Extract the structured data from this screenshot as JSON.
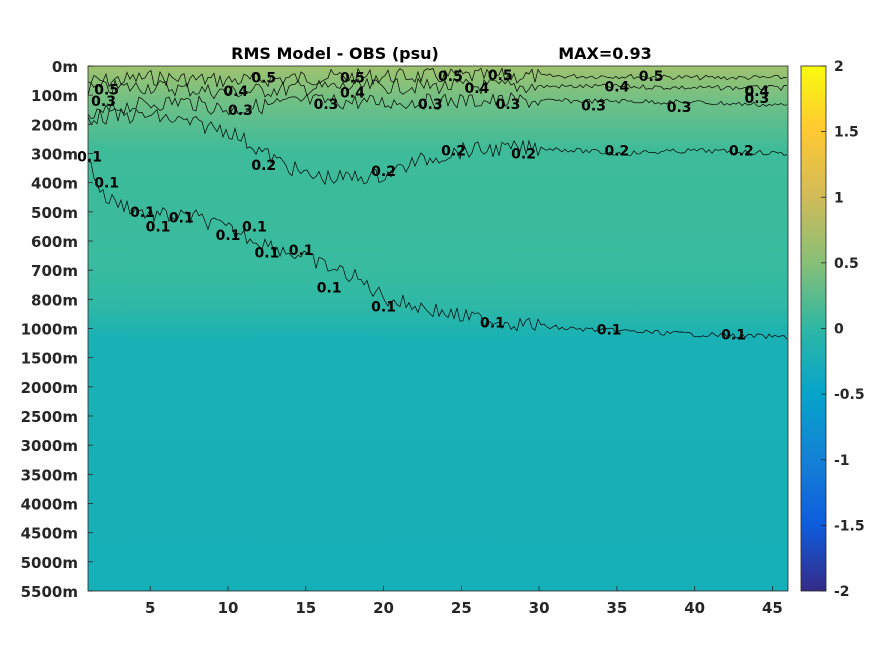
{
  "chart_data": {
    "type": "heatmap",
    "title": "RMS Model - OBS (psu)",
    "annotation": "MAX=0.93",
    "x": {
      "ticks": [
        5,
        10,
        15,
        20,
        25,
        30,
        35,
        40,
        45
      ],
      "range": [
        1,
        46
      ]
    },
    "y": {
      "ticks": [
        "0m",
        "100m",
        "200m",
        "300m",
        "400m",
        "500m",
        "600m",
        "700m",
        "800m",
        "1000m",
        "1500m",
        "2000m",
        "2500m",
        "3000m",
        "3500m",
        "4000m",
        "4500m",
        "5000m",
        "5500m"
      ],
      "direction": "downward"
    },
    "colorbar": {
      "range": [
        -2,
        2
      ],
      "ticks": [
        "2",
        "1.5",
        "1",
        "0.5",
        "0",
        "-0.5",
        "-1",
        "-1.5",
        "-2"
      ],
      "colormap": "parula",
      "stops": [
        "#352a87",
        "#0f5cdd",
        "#1481d6",
        "#06a4ca",
        "#2eb7a4",
        "#87bf77",
        "#d1bb59",
        "#fec832",
        "#f9fb0e"
      ]
    },
    "contour_levels": [
      0.1,
      0.2,
      0.3,
      0.4,
      0.5
    ],
    "contours": [
      {
        "level": 0.5,
        "label": "0.5",
        "profile": [
          [
            1,
            55
          ],
          [
            5,
            40
          ],
          [
            10,
            50
          ],
          [
            15,
            40
          ],
          [
            20,
            35
          ],
          [
            25,
            35
          ],
          [
            30,
            35
          ],
          [
            35,
            35
          ],
          [
            40,
            40
          ],
          [
            46,
            40
          ]
        ]
      },
      {
        "level": 0.4,
        "label": "0.4",
        "profile": [
          [
            1,
            80
          ],
          [
            5,
            70
          ],
          [
            10,
            90
          ],
          [
            15,
            75
          ],
          [
            20,
            70
          ],
          [
            25,
            70
          ],
          [
            30,
            70
          ],
          [
            35,
            70
          ],
          [
            40,
            75
          ],
          [
            46,
            75
          ]
        ]
      },
      {
        "level": 0.3,
        "label": "0.3",
        "profile": [
          [
            1,
            180
          ],
          [
            3,
            140
          ],
          [
            7,
            120
          ],
          [
            10,
            150
          ],
          [
            15,
            120
          ],
          [
            20,
            125
          ],
          [
            25,
            120
          ],
          [
            30,
            120
          ],
          [
            35,
            120
          ],
          [
            40,
            125
          ],
          [
            46,
            135
          ]
        ]
      },
      {
        "level": 0.2,
        "label": "0.2",
        "profile": [
          [
            1,
            175
          ],
          [
            5,
            170
          ],
          [
            10,
            220
          ],
          [
            13,
            320
          ],
          [
            15,
            375
          ],
          [
            17,
            385
          ],
          [
            20,
            375
          ],
          [
            22,
            330
          ],
          [
            25,
            290
          ],
          [
            30,
            280
          ],
          [
            35,
            300
          ],
          [
            40,
            290
          ],
          [
            46,
            300
          ]
        ]
      },
      {
        "level": 0.1,
        "label": "0.1",
        "profile": [
          [
            1,
            320
          ],
          [
            2,
            450
          ],
          [
            5,
            510
          ],
          [
            8,
            520
          ],
          [
            10,
            560
          ],
          [
            12,
            600
          ],
          [
            15,
            660
          ],
          [
            18,
            720
          ],
          [
            20,
            790
          ],
          [
            25,
            920
          ],
          [
            30,
            980
          ],
          [
            35,
            1040
          ],
          [
            40,
            1100
          ],
          [
            46,
            1150
          ]
        ]
      }
    ],
    "contour_labels": [
      {
        "text": "0.5",
        "x": 2.2,
        "y": 80
      },
      {
        "text": "0.4",
        "x": 10.5,
        "y": 85
      },
      {
        "text": "0.5",
        "x": 12.3,
        "y": 40
      },
      {
        "text": "0.5",
        "x": 18,
        "y": 40
      },
      {
        "text": "0.4",
        "x": 18,
        "y": 90
      },
      {
        "text": "0.3",
        "x": 16.3,
        "y": 130
      },
      {
        "text": "0.3",
        "x": 10.8,
        "y": 150
      },
      {
        "text": "0.3",
        "x": 23,
        "y": 130
      },
      {
        "text": "0.5",
        "x": 24.3,
        "y": 35
      },
      {
        "text": "0.4",
        "x": 26,
        "y": 75
      },
      {
        "text": "0.5",
        "x": 27.5,
        "y": 30
      },
      {
        "text": "0.3",
        "x": 28,
        "y": 130
      },
      {
        "text": "0.3",
        "x": 33.5,
        "y": 135
      },
      {
        "text": "0.4",
        "x": 35,
        "y": 70
      },
      {
        "text": "0.5",
        "x": 37.2,
        "y": 35
      },
      {
        "text": "0.3",
        "x": 39,
        "y": 140
      },
      {
        "text": "0.4",
        "x": 44,
        "y": 85
      },
      {
        "text": "0.3",
        "x": 44,
        "y": 110
      },
      {
        "text": "0.3",
        "x": 2,
        "y": 120
      },
      {
        "text": "0.2",
        "x": 12.3,
        "y": 340
      },
      {
        "text": "0.2",
        "x": 20,
        "y": 360
      },
      {
        "text": "0.2",
        "x": 24.5,
        "y": 290
      },
      {
        "text": "0.2",
        "x": 29,
        "y": 300
      },
      {
        "text": "0.2",
        "x": 35,
        "y": 290
      },
      {
        "text": "0.2",
        "x": 43,
        "y": 290
      },
      {
        "text": "0.1",
        "x": 1.1,
        "y": 310
      },
      {
        "text": "0.1",
        "x": 2.2,
        "y": 400
      },
      {
        "text": "0.1",
        "x": 4.5,
        "y": 500
      },
      {
        "text": "0.1",
        "x": 5.5,
        "y": 550
      },
      {
        "text": "0.1",
        "x": 7,
        "y": 520
      },
      {
        "text": "0.1",
        "x": 10,
        "y": 580
      },
      {
        "text": "0.1",
        "x": 11.7,
        "y": 550
      },
      {
        "text": "0.1",
        "x": 12.5,
        "y": 640
      },
      {
        "text": "0.1",
        "x": 14.7,
        "y": 630
      },
      {
        "text": "0.1",
        "x": 16.5,
        "y": 760
      },
      {
        "text": "0.1",
        "x": 20,
        "y": 850
      },
      {
        "text": "0.1",
        "x": 27,
        "y": 960
      },
      {
        "text": "0.1",
        "x": 34.5,
        "y": 1020
      },
      {
        "text": "0.1",
        "x": 42.5,
        "y": 1100
      }
    ]
  }
}
